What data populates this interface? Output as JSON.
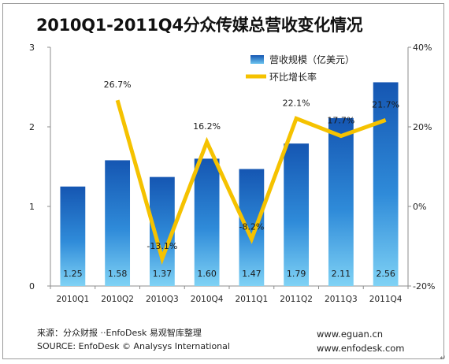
{
  "chart_data": {
    "type": "bar+line",
    "title": "2010Q1-2011Q4分众传媒总营收变化情况",
    "categories": [
      "2010Q1",
      "2010Q2",
      "2010Q3",
      "2010Q4",
      "2011Q1",
      "2011Q2",
      "2011Q3",
      "2011Q4"
    ],
    "series": [
      {
        "name": "营收规模（亿美元）",
        "type": "bar",
        "axis": "left",
        "values": [
          1.25,
          1.58,
          1.37,
          1.6,
          1.47,
          1.79,
          2.11,
          2.56
        ],
        "labels": [
          "1.25",
          "1.58",
          "1.37",
          "1.60",
          "1.47",
          "1.79",
          "2.11",
          "2.56"
        ],
        "color": "#1e73c8"
      },
      {
        "name": "环比增长率",
        "type": "line",
        "axis": "right",
        "values": [
          null,
          26.7,
          -13.1,
          16.2,
          -8.2,
          22.1,
          17.7,
          21.7
        ],
        "labels": [
          "",
          "26.7%",
          "-13.1%",
          "16.2%",
          "-8.2%",
          "22.1%",
          "17.7%",
          "21.7%"
        ],
        "color": "#f5c200"
      }
    ],
    "y_left": {
      "ylim": [
        0,
        3
      ],
      "ticks": [
        "0",
        "1",
        "2",
        "3"
      ]
    },
    "y_right": {
      "ylim": [
        -20,
        40
      ],
      "ticks": [
        "-20%",
        "0%",
        "20%",
        "40%"
      ]
    },
    "legend": "top-right",
    "grid": false
  },
  "footer": {
    "source_cn": "来源：分众财报 ··EnfoDesk 易观智库整理",
    "source_en": "SOURCE: EnfoDesk © Analysys International",
    "site1": "www.eguan.cn",
    "site2": "www.enfodesk.com",
    "end_mark": "↵"
  }
}
